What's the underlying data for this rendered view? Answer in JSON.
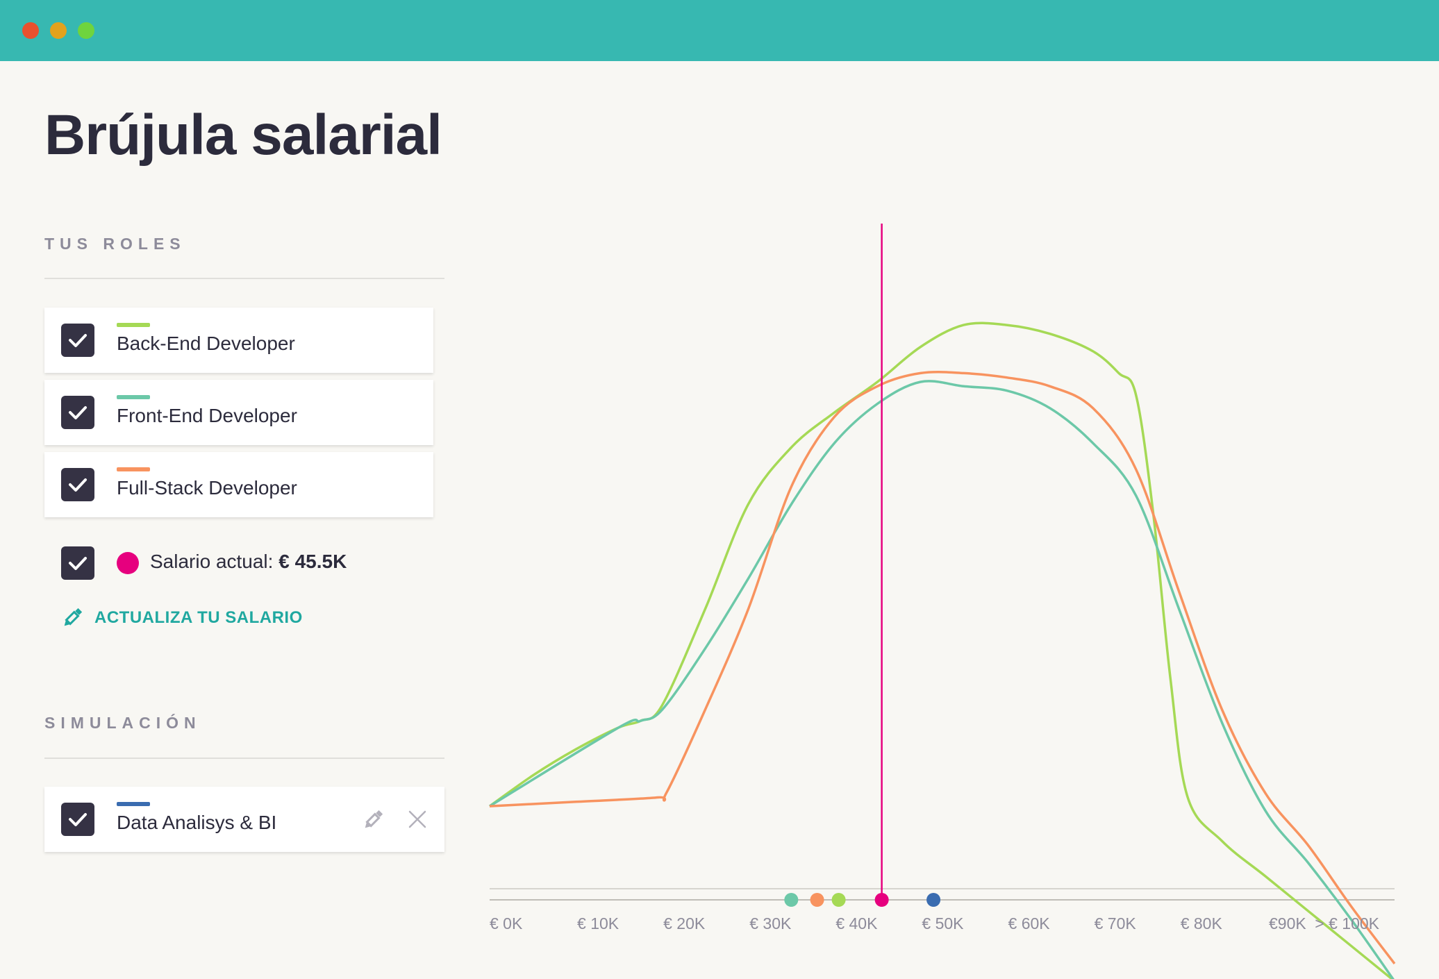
{
  "window": {
    "title": "Brújula salarial",
    "traffic_lights": [
      "#e8512e",
      "#e3a21c",
      "#6fd43d"
    ],
    "titlebar_color": "#37b8b1"
  },
  "roles_section": {
    "title": "TUS ROLES",
    "roles": [
      {
        "label": "Back-End Developer",
        "color": "#a5d955",
        "checked": true
      },
      {
        "label": "Front-End Developer",
        "color": "#6cc8a8",
        "checked": true
      },
      {
        "label": "Full-Stack Developer",
        "color": "#f8935f",
        "checked": true
      }
    ],
    "current_salary": {
      "label": "Salario actual:",
      "value": "€ 45.5K",
      "color": "#e6007e",
      "checked": true
    },
    "update_link": "ACTUALIZA TU SALARIO"
  },
  "simulation_section": {
    "title": "SIMULACIÓN",
    "items": [
      {
        "label": "Data Analisys & BI",
        "color": "#3a6cb0",
        "checked": true
      }
    ]
  },
  "chart_data": {
    "type": "line",
    "x_tick_labels": [
      "€ 0K",
      "€ 10K",
      "€ 20K",
      "€ 30K",
      "€ 40K",
      "€ 50K",
      "€ 60K",
      "€ 70K",
      "€ 80K",
      "€90K",
      "> € 100K"
    ],
    "xlim": [
      0,
      105
    ],
    "grid": false,
    "series": [
      {
        "name": "Back-End Developer",
        "color": "#a5d955",
        "x": [
          0,
          5,
          10,
          15,
          17.5,
          20,
          25,
          30,
          35,
          40,
          45,
          50,
          55,
          60,
          65,
          70,
          73,
          75,
          77,
          79,
          81,
          85,
          90,
          95,
          100,
          105
        ],
        "y": [
          0.03,
          0.1,
          0.16,
          0.21,
          0.225,
          0.26,
          0.48,
          0.72,
          0.85,
          0.93,
          1.0,
          1.08,
          1.13,
          1.13,
          1.11,
          1.07,
          1.02,
          0.97,
          0.7,
          0.32,
          0.05,
          -0.05,
          -0.13,
          -0.21,
          -0.29,
          -0.37
        ]
      },
      {
        "name": "Front-End Developer",
        "color": "#6cc8a8",
        "x": [
          0,
          15,
          17.5,
          20,
          25,
          30,
          35,
          40,
          45,
          50,
          55,
          60,
          65,
          70,
          75,
          80,
          85,
          90,
          95,
          100,
          105
        ],
        "y": [
          0.03,
          0.21,
          0.225,
          0.25,
          0.39,
          0.55,
          0.72,
          0.86,
          0.95,
          1.0,
          0.99,
          0.98,
          0.94,
          0.86,
          0.74,
          0.48,
          0.22,
          0.02,
          -0.1,
          -0.23,
          -0.37
        ]
      },
      {
        "name": "Full-Stack Developer",
        "color": "#f8935f",
        "x": [
          0,
          10,
          19.5,
          20.5,
          25,
          30,
          35,
          40,
          45,
          50,
          55,
          60,
          65,
          70,
          75,
          80,
          85,
          90,
          95,
          100,
          105
        ],
        "y": [
          0.03,
          0.04,
          0.05,
          0.06,
          0.25,
          0.48,
          0.76,
          0.92,
          0.99,
          1.02,
          1.02,
          1.01,
          0.99,
          0.94,
          0.8,
          0.52,
          0.25,
          0.06,
          -0.06,
          -0.2,
          -0.33
        ]
      }
    ],
    "current_salary_marker": {
      "x": 45.5,
      "color": "#e6007e"
    },
    "axis_markers": [
      {
        "x": 35,
        "color": "#6cc8a8"
      },
      {
        "x": 38,
        "color": "#f8935f"
      },
      {
        "x": 40.5,
        "color": "#a5d955"
      },
      {
        "x": 45.5,
        "color": "#e6007e"
      },
      {
        "x": 51.5,
        "color": "#3a6cb0"
      }
    ]
  }
}
